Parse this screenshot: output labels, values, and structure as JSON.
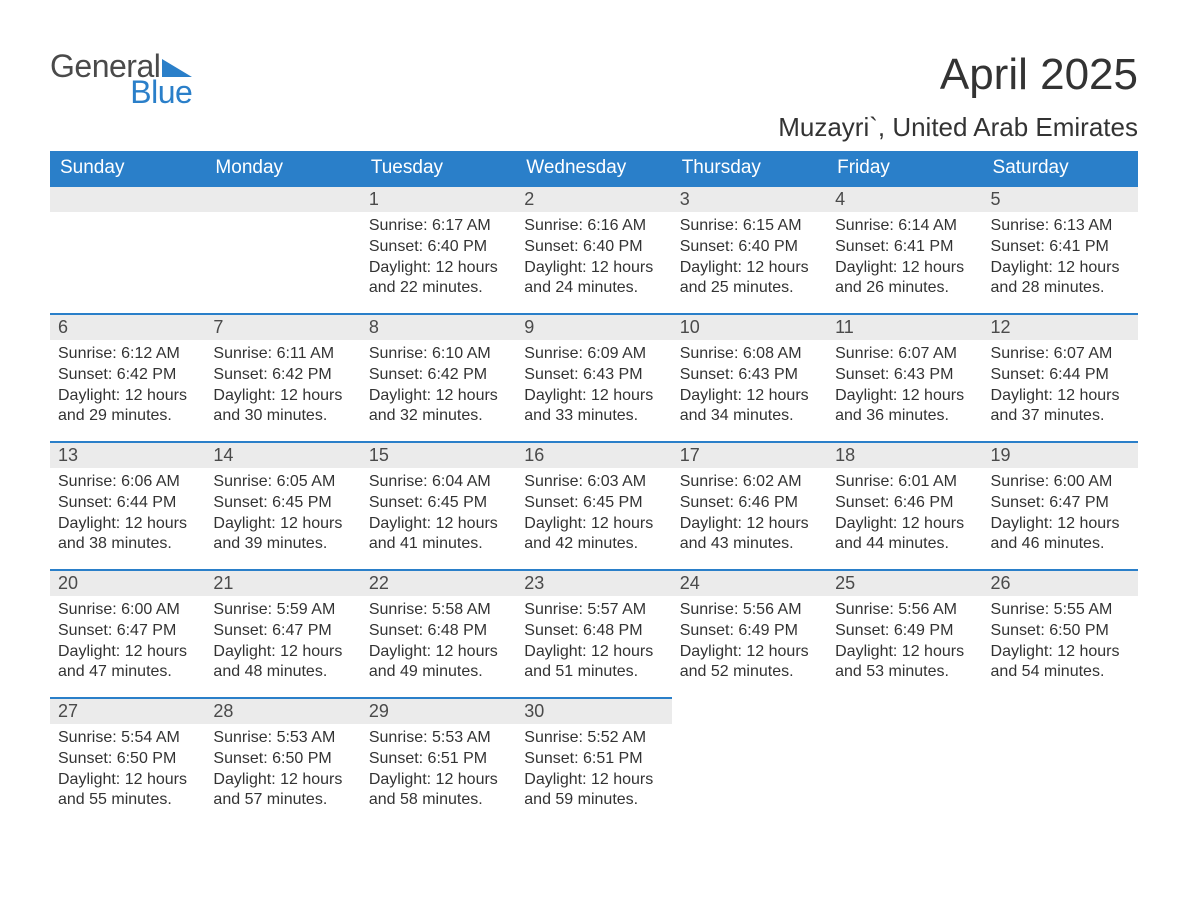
{
  "brand": {
    "part1": "General",
    "part2": "Blue",
    "accent_color": "#2a7fc9"
  },
  "header": {
    "month_title": "April 2025",
    "location": "Muzayri`, United Arab Emirates"
  },
  "calendar": {
    "header_bg": "#2a7fc9",
    "header_fg": "#ffffff",
    "daynum_bg": "#ebebeb",
    "border_color": "#2a7fc9",
    "text_color": "#333333",
    "font_family": "Arial",
    "daynum_fontsize": 18,
    "body_fontsize": 16,
    "header_fontsize": 19,
    "title_fontsize": 44,
    "location_fontsize": 26,
    "day_names": [
      "Sunday",
      "Monday",
      "Tuesday",
      "Wednesday",
      "Thursday",
      "Friday",
      "Saturday"
    ],
    "weeks": [
      [
        null,
        null,
        {
          "n": "1",
          "sr": "Sunrise: 6:17 AM",
          "ss": "Sunset: 6:40 PM",
          "d1": "Daylight: 12 hours",
          "d2": "and 22 minutes."
        },
        {
          "n": "2",
          "sr": "Sunrise: 6:16 AM",
          "ss": "Sunset: 6:40 PM",
          "d1": "Daylight: 12 hours",
          "d2": "and 24 minutes."
        },
        {
          "n": "3",
          "sr": "Sunrise: 6:15 AM",
          "ss": "Sunset: 6:40 PM",
          "d1": "Daylight: 12 hours",
          "d2": "and 25 minutes."
        },
        {
          "n": "4",
          "sr": "Sunrise: 6:14 AM",
          "ss": "Sunset: 6:41 PM",
          "d1": "Daylight: 12 hours",
          "d2": "and 26 minutes."
        },
        {
          "n": "5",
          "sr": "Sunrise: 6:13 AM",
          "ss": "Sunset: 6:41 PM",
          "d1": "Daylight: 12 hours",
          "d2": "and 28 minutes."
        }
      ],
      [
        {
          "n": "6",
          "sr": "Sunrise: 6:12 AM",
          "ss": "Sunset: 6:42 PM",
          "d1": "Daylight: 12 hours",
          "d2": "and 29 minutes."
        },
        {
          "n": "7",
          "sr": "Sunrise: 6:11 AM",
          "ss": "Sunset: 6:42 PM",
          "d1": "Daylight: 12 hours",
          "d2": "and 30 minutes."
        },
        {
          "n": "8",
          "sr": "Sunrise: 6:10 AM",
          "ss": "Sunset: 6:42 PM",
          "d1": "Daylight: 12 hours",
          "d2": "and 32 minutes."
        },
        {
          "n": "9",
          "sr": "Sunrise: 6:09 AM",
          "ss": "Sunset: 6:43 PM",
          "d1": "Daylight: 12 hours",
          "d2": "and 33 minutes."
        },
        {
          "n": "10",
          "sr": "Sunrise: 6:08 AM",
          "ss": "Sunset: 6:43 PM",
          "d1": "Daylight: 12 hours",
          "d2": "and 34 minutes."
        },
        {
          "n": "11",
          "sr": "Sunrise: 6:07 AM",
          "ss": "Sunset: 6:43 PM",
          "d1": "Daylight: 12 hours",
          "d2": "and 36 minutes."
        },
        {
          "n": "12",
          "sr": "Sunrise: 6:07 AM",
          "ss": "Sunset: 6:44 PM",
          "d1": "Daylight: 12 hours",
          "d2": "and 37 minutes."
        }
      ],
      [
        {
          "n": "13",
          "sr": "Sunrise: 6:06 AM",
          "ss": "Sunset: 6:44 PM",
          "d1": "Daylight: 12 hours",
          "d2": "and 38 minutes."
        },
        {
          "n": "14",
          "sr": "Sunrise: 6:05 AM",
          "ss": "Sunset: 6:45 PM",
          "d1": "Daylight: 12 hours",
          "d2": "and 39 minutes."
        },
        {
          "n": "15",
          "sr": "Sunrise: 6:04 AM",
          "ss": "Sunset: 6:45 PM",
          "d1": "Daylight: 12 hours",
          "d2": "and 41 minutes."
        },
        {
          "n": "16",
          "sr": "Sunrise: 6:03 AM",
          "ss": "Sunset: 6:45 PM",
          "d1": "Daylight: 12 hours",
          "d2": "and 42 minutes."
        },
        {
          "n": "17",
          "sr": "Sunrise: 6:02 AM",
          "ss": "Sunset: 6:46 PM",
          "d1": "Daylight: 12 hours",
          "d2": "and 43 minutes."
        },
        {
          "n": "18",
          "sr": "Sunrise: 6:01 AM",
          "ss": "Sunset: 6:46 PM",
          "d1": "Daylight: 12 hours",
          "d2": "and 44 minutes."
        },
        {
          "n": "19",
          "sr": "Sunrise: 6:00 AM",
          "ss": "Sunset: 6:47 PM",
          "d1": "Daylight: 12 hours",
          "d2": "and 46 minutes."
        }
      ],
      [
        {
          "n": "20",
          "sr": "Sunrise: 6:00 AM",
          "ss": "Sunset: 6:47 PM",
          "d1": "Daylight: 12 hours",
          "d2": "and 47 minutes."
        },
        {
          "n": "21",
          "sr": "Sunrise: 5:59 AM",
          "ss": "Sunset: 6:47 PM",
          "d1": "Daylight: 12 hours",
          "d2": "and 48 minutes."
        },
        {
          "n": "22",
          "sr": "Sunrise: 5:58 AM",
          "ss": "Sunset: 6:48 PM",
          "d1": "Daylight: 12 hours",
          "d2": "and 49 minutes."
        },
        {
          "n": "23",
          "sr": "Sunrise: 5:57 AM",
          "ss": "Sunset: 6:48 PM",
          "d1": "Daylight: 12 hours",
          "d2": "and 51 minutes."
        },
        {
          "n": "24",
          "sr": "Sunrise: 5:56 AM",
          "ss": "Sunset: 6:49 PM",
          "d1": "Daylight: 12 hours",
          "d2": "and 52 minutes."
        },
        {
          "n": "25",
          "sr": "Sunrise: 5:56 AM",
          "ss": "Sunset: 6:49 PM",
          "d1": "Daylight: 12 hours",
          "d2": "and 53 minutes."
        },
        {
          "n": "26",
          "sr": "Sunrise: 5:55 AM",
          "ss": "Sunset: 6:50 PM",
          "d1": "Daylight: 12 hours",
          "d2": "and 54 minutes."
        }
      ],
      [
        {
          "n": "27",
          "sr": "Sunrise: 5:54 AM",
          "ss": "Sunset: 6:50 PM",
          "d1": "Daylight: 12 hours",
          "d2": "and 55 minutes."
        },
        {
          "n": "28",
          "sr": "Sunrise: 5:53 AM",
          "ss": "Sunset: 6:50 PM",
          "d1": "Daylight: 12 hours",
          "d2": "and 57 minutes."
        },
        {
          "n": "29",
          "sr": "Sunrise: 5:53 AM",
          "ss": "Sunset: 6:51 PM",
          "d1": "Daylight: 12 hours",
          "d2": "and 58 minutes."
        },
        {
          "n": "30",
          "sr": "Sunrise: 5:52 AM",
          "ss": "Sunset: 6:51 PM",
          "d1": "Daylight: 12 hours",
          "d2": "and 59 minutes."
        },
        null,
        null,
        null
      ]
    ]
  }
}
